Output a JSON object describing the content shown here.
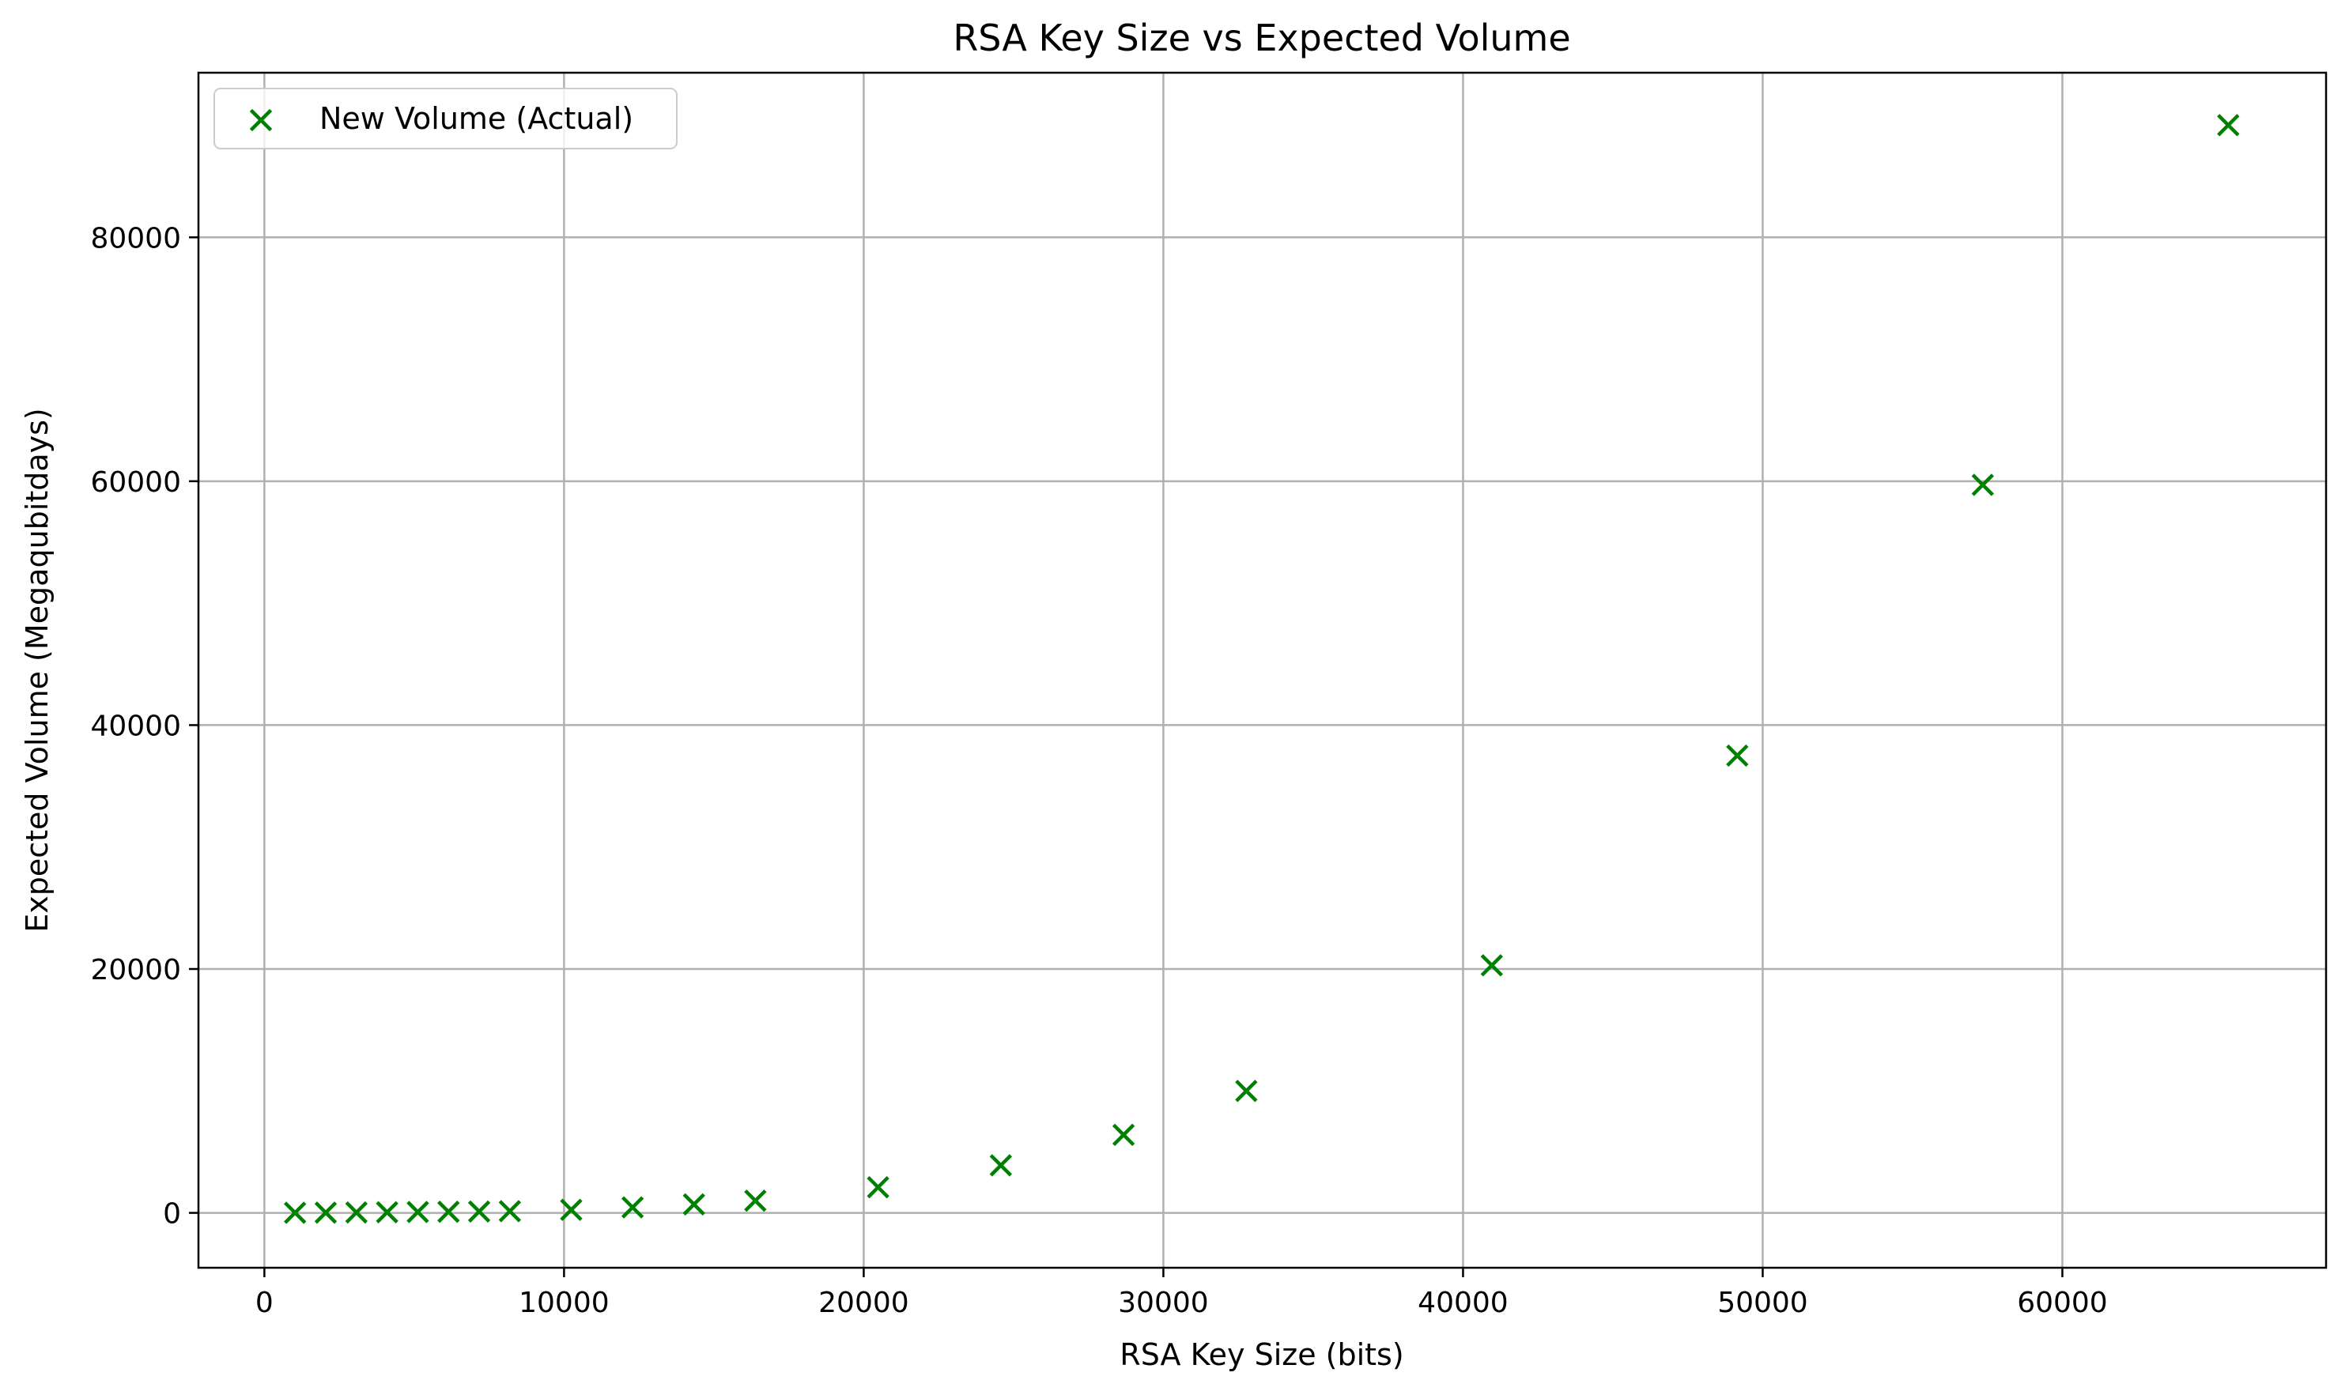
{
  "chart_data": {
    "type": "scatter",
    "title": "RSA Key Size vs Expected Volume",
    "xlabel": "RSA Key Size (bits)",
    "ylabel": "Expected Volume (Megaqubitdays)",
    "xlim": [
      -2200,
      68800
    ],
    "ylim": [
      -4500,
      93500
    ],
    "xticks": [
      0,
      10000,
      20000,
      30000,
      40000,
      50000,
      60000
    ],
    "yticks": [
      0,
      20000,
      40000,
      60000,
      80000
    ],
    "grid": true,
    "legend_position": "upper-left",
    "colors": {
      "marker": "#008000",
      "grid": "#b0b0b0",
      "axes": "#000000"
    },
    "marker": "x",
    "series": [
      {
        "name": "New Volume (Actual)",
        "points": [
          {
            "x": 1024,
            "y": 10
          },
          {
            "x": 2048,
            "y": 20
          },
          {
            "x": 3072,
            "y": 35
          },
          {
            "x": 4096,
            "y": 50
          },
          {
            "x": 5120,
            "y": 70
          },
          {
            "x": 6144,
            "y": 90
          },
          {
            "x": 7168,
            "y": 110
          },
          {
            "x": 8192,
            "y": 140
          },
          {
            "x": 10240,
            "y": 250
          },
          {
            "x": 12288,
            "y": 450
          },
          {
            "x": 14336,
            "y": 700
          },
          {
            "x": 16384,
            "y": 1000
          },
          {
            "x": 20480,
            "y": 2100
          },
          {
            "x": 24576,
            "y": 3900
          },
          {
            "x": 28672,
            "y": 6400
          },
          {
            "x": 32768,
            "y": 10000
          },
          {
            "x": 40960,
            "y": 20300
          },
          {
            "x": 49152,
            "y": 37500
          },
          {
            "x": 57344,
            "y": 59700
          },
          {
            "x": 65536,
            "y": 89200
          }
        ]
      }
    ]
  }
}
